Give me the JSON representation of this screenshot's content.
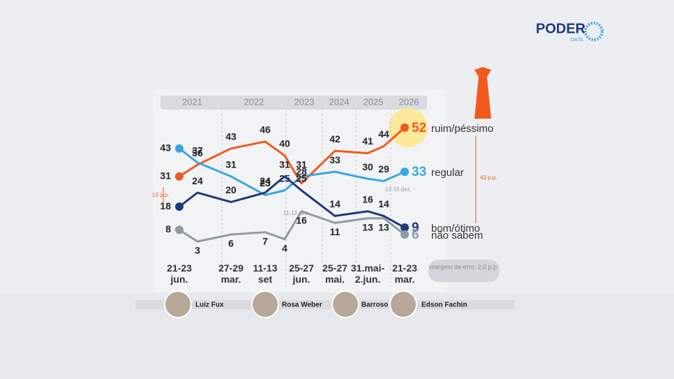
{
  "brand": {
    "name": "PODER",
    "sub": "DATA"
  },
  "chart_data": {
    "type": "line",
    "years": [
      "2021",
      "2022",
      "2023",
      "2024",
      "2025",
      "2026"
    ],
    "categories": [
      "21-23 jun.",
      null,
      "27-29 mar.",
      "11-13 set",
      null,
      "25-27 jun.",
      "25-27 mai.",
      "31.mai-2.jun.",
      null,
      "21-23 mar."
    ],
    "series": [
      {
        "name": "ruim/péssimo",
        "color": "#f05a1e",
        "values": [
          31,
          36,
          43,
          46,
          40,
          28,
          42,
          41,
          44,
          52
        ]
      },
      {
        "name": "regular",
        "color": "#3aa6e0",
        "values": [
          43,
          37,
          31,
          23,
          25,
          31,
          33,
          30,
          29,
          33
        ]
      },
      {
        "name": "bom/ótimo",
        "color": "#1f3a7a",
        "values": [
          18,
          24,
          20,
          24,
          31,
          25,
          14,
          16,
          14,
          9
        ]
      },
      {
        "name": "não sabem",
        "color": "#8f9aa3",
        "values": [
          8,
          3,
          6,
          7,
          4,
          16,
          11,
          13,
          13,
          6
        ]
      }
    ],
    "annotations": [
      "13 p.p.",
      "43 p.p.",
      "11-13 dez.",
      "13-15 dez.",
      "margem de erro: 2,0 p.p."
    ]
  },
  "judges": [
    "Luiz Fux",
    "Rosa Weber",
    "Barroso",
    "Edson Fachin"
  ]
}
